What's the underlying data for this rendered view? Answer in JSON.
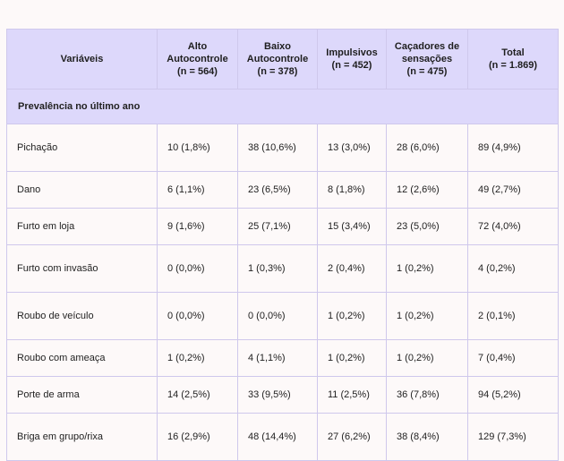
{
  "headers": [
    {
      "lines": [
        "Variáveis"
      ]
    },
    {
      "lines": [
        "Alto",
        "Autocontrole",
        "(n = 564)"
      ]
    },
    {
      "lines": [
        "Baixo",
        "Autocontrole",
        "(n = 378)"
      ]
    },
    {
      "lines": [
        "Impulsivos",
        "(n = 452)"
      ]
    },
    {
      "lines": [
        "Caçadores de",
        "sensações",
        "(n = 475)"
      ]
    },
    {
      "lines": [
        "Total",
        "(n = 1.869)"
      ]
    }
  ],
  "section_title": "Prevalência no último ano",
  "rows": [
    {
      "label": "Pichação",
      "values": [
        "10 (1,8%)",
        "38 (10,6%)",
        "13 (3,0%)",
        "28 (6,0%)",
        "89 (4,9%)"
      ]
    },
    {
      "label": "Dano",
      "values": [
        "6 (1,1%)",
        "23 (6,5%)",
        "8 (1,8%)",
        "12 (2,6%)",
        "49 (2,7%)"
      ]
    },
    {
      "label": "Furto em loja",
      "values": [
        "9 (1,6%)",
        "25 (7,1%)",
        "15 (3,4%)",
        "23 (5,0%)",
        "72 (4,0%)"
      ]
    },
    {
      "label": "Furto com invasão",
      "values": [
        "0 (0,0%)",
        "1 (0,3%)",
        "2 (0,4%)",
        "1 (0,2%)",
        "4 (0,2%)"
      ]
    },
    {
      "label": "Roubo de veículo",
      "values": [
        "0 (0,0%)",
        "0 (0,0%)",
        "1 (0,2%)",
        "1 (0,2%)",
        "2 (0,1%)"
      ]
    },
    {
      "label": "Roubo com ameaça",
      "values": [
        "1 (0,2%)",
        "4 (1,1%)",
        "1 (0,2%)",
        "1 (0,2%)",
        "7 (0,4%)"
      ]
    },
    {
      "label": "Porte de arma",
      "values": [
        "14 (2,5%)",
        "33 (9,5%)",
        "11 (2,5%)",
        "36 (7,8%)",
        "94 (5,2%)"
      ]
    },
    {
      "label": "Briga em grupo/rixa",
      "values": [
        "16 (2,9%)",
        "48 (14,4%)",
        "27 (6,2%)",
        "38 (8,4%)",
        "129 (7,3%)"
      ]
    }
  ]
}
